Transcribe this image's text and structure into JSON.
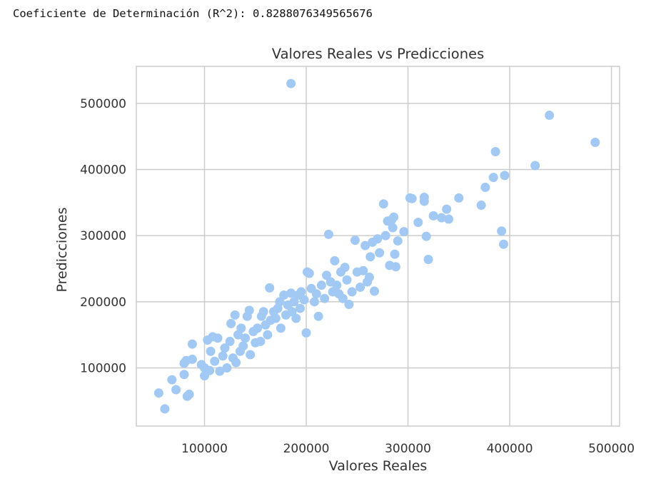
{
  "output": {
    "r2_text": "Coeficiente de Determinación (R^2): 0.8288076349565676"
  },
  "colors": {
    "point": "#a1c9f4",
    "grid": "#cccccc",
    "background": "#ffffff",
    "text": "#333333"
  },
  "chart_data": {
    "type": "scatter",
    "title": "Valores Reales vs Predicciones",
    "xlabel": "Valores Reales",
    "ylabel": "Predicciones",
    "xlim": [
      33000,
      508000
    ],
    "ylim": [
      12000,
      556000
    ],
    "grid": true,
    "xticks": [
      100000,
      200000,
      300000,
      400000,
      500000
    ],
    "yticks": [
      100000,
      200000,
      300000,
      400000,
      500000
    ],
    "xtick_labels": [
      "100000",
      "200000",
      "300000",
      "400000",
      "500000"
    ],
    "ytick_labels": [
      "100000",
      "200000",
      "300000",
      "400000",
      "500000"
    ],
    "points": [
      [
        55000,
        62000
      ],
      [
        61000,
        38000
      ],
      [
        68000,
        82000
      ],
      [
        72000,
        67000
      ],
      [
        80000,
        90000
      ],
      [
        80000,
        107000
      ],
      [
        82000,
        111000
      ],
      [
        83000,
        57000
      ],
      [
        85000,
        60000
      ],
      [
        88000,
        136000
      ],
      [
        88000,
        113000
      ],
      [
        97000,
        105000
      ],
      [
        100000,
        88000
      ],
      [
        100000,
        100000
      ],
      [
        103000,
        142000
      ],
      [
        105000,
        96000
      ],
      [
        106000,
        125000
      ],
      [
        108000,
        147000
      ],
      [
        110000,
        110000
      ],
      [
        113000,
        145000
      ],
      [
        115000,
        95000
      ],
      [
        118000,
        118000
      ],
      [
        120000,
        130000
      ],
      [
        122000,
        100000
      ],
      [
        125000,
        140000
      ],
      [
        126000,
        167000
      ],
      [
        128000,
        115000
      ],
      [
        130000,
        180000
      ],
      [
        131000,
        108000
      ],
      [
        133000,
        150000
      ],
      [
        135000,
        125000
      ],
      [
        136000,
        160000
      ],
      [
        138000,
        133000
      ],
      [
        140000,
        145000
      ],
      [
        142000,
        178000
      ],
      [
        144000,
        187000
      ],
      [
        145000,
        120000
      ],
      [
        148000,
        155000
      ],
      [
        150000,
        138000
      ],
      [
        152000,
        160000
      ],
      [
        155000,
        140000
      ],
      [
        156000,
        178000
      ],
      [
        158000,
        185000
      ],
      [
        160000,
        165000
      ],
      [
        162000,
        150000
      ],
      [
        164000,
        221000
      ],
      [
        165000,
        172000
      ],
      [
        168000,
        185000
      ],
      [
        170000,
        175000
      ],
      [
        172000,
        190000
      ],
      [
        174000,
        200000
      ],
      [
        175000,
        160000
      ],
      [
        178000,
        210000
      ],
      [
        180000,
        180000
      ],
      [
        182000,
        195000
      ],
      [
        185000,
        213000
      ],
      [
        186000,
        185000
      ],
      [
        188000,
        200000
      ],
      [
        190000,
        175000
      ],
      [
        192000,
        210000
      ],
      [
        194000,
        190000
      ],
      [
        195000,
        215000
      ],
      [
        198000,
        203000
      ],
      [
        200000,
        153000
      ],
      [
        201000,
        245000
      ],
      [
        203000,
        243000
      ],
      [
        205000,
        220000
      ],
      [
        208000,
        200000
      ],
      [
        210000,
        212000
      ],
      [
        212000,
        178000
      ],
      [
        215000,
        225000
      ],
      [
        218000,
        205000
      ],
      [
        220000,
        240000
      ],
      [
        222000,
        302000
      ],
      [
        224000,
        230000
      ],
      [
        226000,
        215000
      ],
      [
        228000,
        262000
      ],
      [
        230000,
        225000
      ],
      [
        232000,
        212000
      ],
      [
        234000,
        245000
      ],
      [
        236000,
        205000
      ],
      [
        238000,
        252000
      ],
      [
        240000,
        233000
      ],
      [
        242000,
        196000
      ],
      [
        245000,
        215000
      ],
      [
        248000,
        293000
      ],
      [
        250000,
        245000
      ],
      [
        253000,
        222000
      ],
      [
        256000,
        247000
      ],
      [
        258000,
        285000
      ],
      [
        260000,
        230000
      ],
      [
        262000,
        237000
      ],
      [
        263000,
        268000
      ],
      [
        265000,
        290000
      ],
      [
        267000,
        216000
      ],
      [
        270000,
        295000
      ],
      [
        272000,
        274000
      ],
      [
        276000,
        348000
      ],
      [
        278000,
        300000
      ],
      [
        280000,
        322000
      ],
      [
        282000,
        255000
      ],
      [
        284000,
        324000
      ],
      [
        285000,
        312000
      ],
      [
        286000,
        328000
      ],
      [
        287000,
        272000
      ],
      [
        288000,
        253000
      ],
      [
        290000,
        292000
      ],
      [
        296000,
        306000
      ],
      [
        302000,
        357000
      ],
      [
        304000,
        356000
      ],
      [
        310000,
        320000
      ],
      [
        316000,
        358000
      ],
      [
        316000,
        352000
      ],
      [
        318000,
        299000
      ],
      [
        320000,
        264000
      ],
      [
        325000,
        330000
      ],
      [
        333000,
        327000
      ],
      [
        338000,
        340000
      ],
      [
        340000,
        325000
      ],
      [
        350000,
        357000
      ],
      [
        372000,
        346000
      ],
      [
        376000,
        373000
      ],
      [
        384000,
        388000
      ],
      [
        386000,
        427000
      ],
      [
        392000,
        307000
      ],
      [
        394000,
        287000
      ],
      [
        395000,
        391000
      ],
      [
        425000,
        406000
      ],
      [
        439000,
        482000
      ],
      [
        484000,
        441000
      ],
      [
        185000,
        530000
      ]
    ]
  }
}
